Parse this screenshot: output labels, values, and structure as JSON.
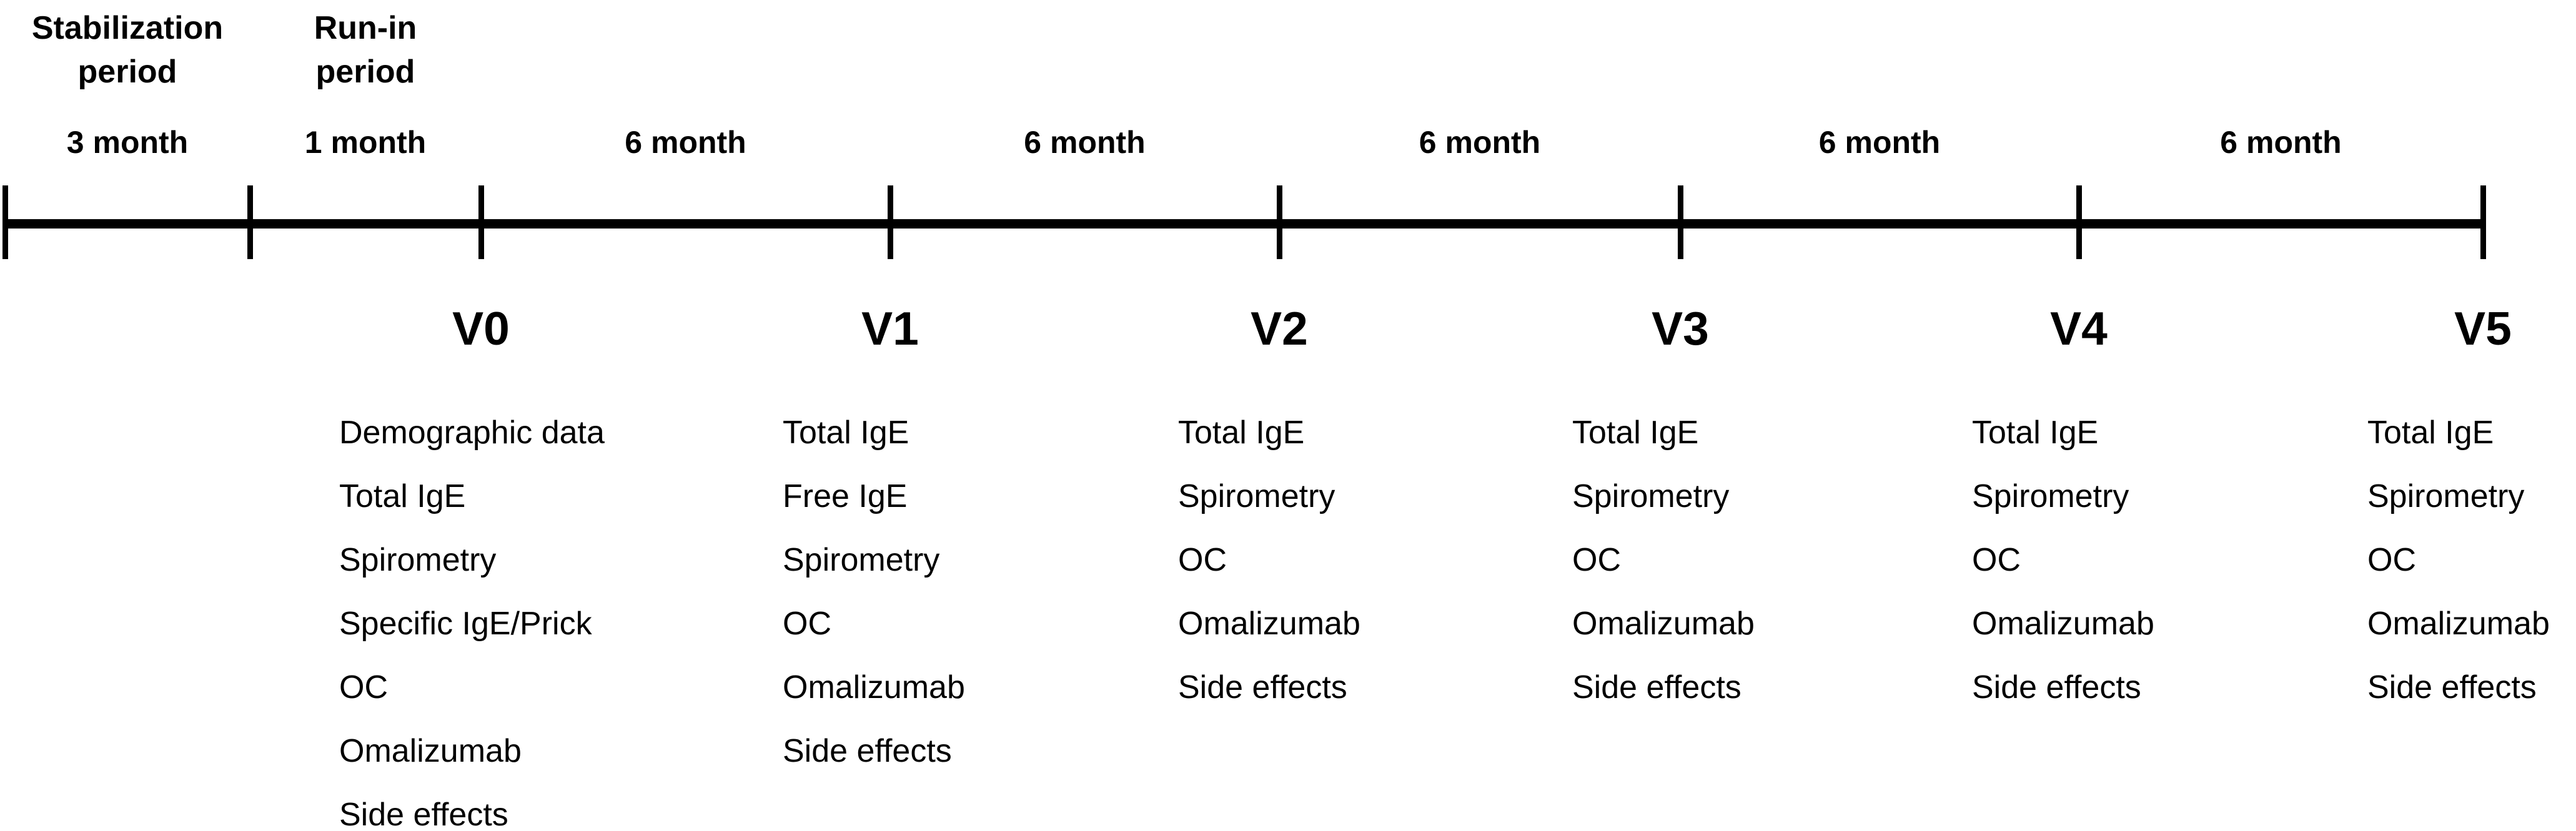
{
  "diagram": {
    "background_color": "#ffffff",
    "line_color": "#000000",
    "segments": [
      {
        "period_lines": [
          "Stabilization",
          "period"
        ],
        "duration": "3 month"
      },
      {
        "period_lines": [
          "Run-in",
          "period"
        ],
        "duration": "1 month"
      },
      {
        "period_lines": [],
        "duration": "6 month"
      },
      {
        "period_lines": [],
        "duration": "6 month"
      },
      {
        "period_lines": [],
        "duration": "6 month"
      },
      {
        "period_lines": [],
        "duration": "6 month"
      },
      {
        "period_lines": [],
        "duration": "6 month"
      }
    ],
    "visits": [
      {
        "id": "V0",
        "assessments": [
          "Demographic data",
          "Total IgE",
          "Spirometry",
          "Specific IgE/Prick",
          "OC",
          "Omalizumab",
          "Side effects"
        ]
      },
      {
        "id": "V1",
        "assessments": [
          "Total IgE",
          "Free IgE",
          "Spirometry",
          "OC",
          "Omalizumab",
          "Side effects"
        ]
      },
      {
        "id": "V2",
        "assessments": [
          "Total IgE",
          "Spirometry",
          "OC",
          "Omalizumab",
          "Side effects"
        ]
      },
      {
        "id": "V3",
        "assessments": [
          "Total IgE",
          "Spirometry",
          "OC",
          "Omalizumab",
          "Side effects"
        ]
      },
      {
        "id": "V4",
        "assessments": [
          "Total IgE",
          "Spirometry",
          "OC",
          "Omalizumab",
          "Side effects"
        ]
      },
      {
        "id": "V5",
        "assessments": [
          "Total IgE",
          "Spirometry",
          "OC",
          "Omalizumab",
          "Side effects"
        ]
      }
    ]
  }
}
